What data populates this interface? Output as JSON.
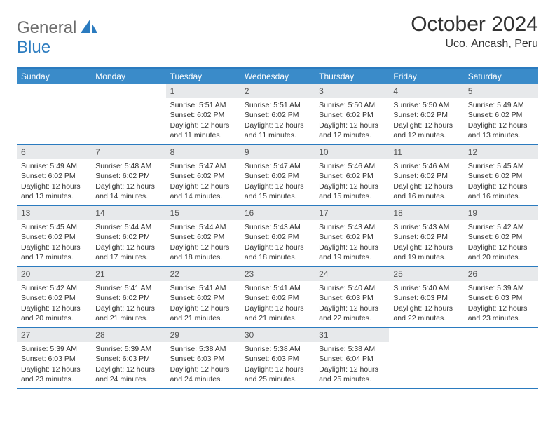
{
  "logo": {
    "text1": "General",
    "text2": "Blue"
  },
  "title": "October 2024",
  "location": "Uco, Ancash, Peru",
  "colors": {
    "header_bg": "#3a8bc9",
    "border": "#2b7bbf",
    "daynum_bg": "#e7e9eb",
    "logo_gray": "#6b6b6b",
    "logo_blue": "#2b7bbf"
  },
  "day_names": [
    "Sunday",
    "Monday",
    "Tuesday",
    "Wednesday",
    "Thursday",
    "Friday",
    "Saturday"
  ],
  "weeks": [
    [
      null,
      null,
      {
        "n": "1",
        "sr": "5:51 AM",
        "ss": "6:02 PM",
        "dl": "12 hours and 11 minutes."
      },
      {
        "n": "2",
        "sr": "5:51 AM",
        "ss": "6:02 PM",
        "dl": "12 hours and 11 minutes."
      },
      {
        "n": "3",
        "sr": "5:50 AM",
        "ss": "6:02 PM",
        "dl": "12 hours and 12 minutes."
      },
      {
        "n": "4",
        "sr": "5:50 AM",
        "ss": "6:02 PM",
        "dl": "12 hours and 12 minutes."
      },
      {
        "n": "5",
        "sr": "5:49 AM",
        "ss": "6:02 PM",
        "dl": "12 hours and 13 minutes."
      }
    ],
    [
      {
        "n": "6",
        "sr": "5:49 AM",
        "ss": "6:02 PM",
        "dl": "12 hours and 13 minutes."
      },
      {
        "n": "7",
        "sr": "5:48 AM",
        "ss": "6:02 PM",
        "dl": "12 hours and 14 minutes."
      },
      {
        "n": "8",
        "sr": "5:47 AM",
        "ss": "6:02 PM",
        "dl": "12 hours and 14 minutes."
      },
      {
        "n": "9",
        "sr": "5:47 AM",
        "ss": "6:02 PM",
        "dl": "12 hours and 15 minutes."
      },
      {
        "n": "10",
        "sr": "5:46 AM",
        "ss": "6:02 PM",
        "dl": "12 hours and 15 minutes."
      },
      {
        "n": "11",
        "sr": "5:46 AM",
        "ss": "6:02 PM",
        "dl": "12 hours and 16 minutes."
      },
      {
        "n": "12",
        "sr": "5:45 AM",
        "ss": "6:02 PM",
        "dl": "12 hours and 16 minutes."
      }
    ],
    [
      {
        "n": "13",
        "sr": "5:45 AM",
        "ss": "6:02 PM",
        "dl": "12 hours and 17 minutes."
      },
      {
        "n": "14",
        "sr": "5:44 AM",
        "ss": "6:02 PM",
        "dl": "12 hours and 17 minutes."
      },
      {
        "n": "15",
        "sr": "5:44 AM",
        "ss": "6:02 PM",
        "dl": "12 hours and 18 minutes."
      },
      {
        "n": "16",
        "sr": "5:43 AM",
        "ss": "6:02 PM",
        "dl": "12 hours and 18 minutes."
      },
      {
        "n": "17",
        "sr": "5:43 AM",
        "ss": "6:02 PM",
        "dl": "12 hours and 19 minutes."
      },
      {
        "n": "18",
        "sr": "5:43 AM",
        "ss": "6:02 PM",
        "dl": "12 hours and 19 minutes."
      },
      {
        "n": "19",
        "sr": "5:42 AM",
        "ss": "6:02 PM",
        "dl": "12 hours and 20 minutes."
      }
    ],
    [
      {
        "n": "20",
        "sr": "5:42 AM",
        "ss": "6:02 PM",
        "dl": "12 hours and 20 minutes."
      },
      {
        "n": "21",
        "sr": "5:41 AM",
        "ss": "6:02 PM",
        "dl": "12 hours and 21 minutes."
      },
      {
        "n": "22",
        "sr": "5:41 AM",
        "ss": "6:02 PM",
        "dl": "12 hours and 21 minutes."
      },
      {
        "n": "23",
        "sr": "5:41 AM",
        "ss": "6:02 PM",
        "dl": "12 hours and 21 minutes."
      },
      {
        "n": "24",
        "sr": "5:40 AM",
        "ss": "6:03 PM",
        "dl": "12 hours and 22 minutes."
      },
      {
        "n": "25",
        "sr": "5:40 AM",
        "ss": "6:03 PM",
        "dl": "12 hours and 22 minutes."
      },
      {
        "n": "26",
        "sr": "5:39 AM",
        "ss": "6:03 PM",
        "dl": "12 hours and 23 minutes."
      }
    ],
    [
      {
        "n": "27",
        "sr": "5:39 AM",
        "ss": "6:03 PM",
        "dl": "12 hours and 23 minutes."
      },
      {
        "n": "28",
        "sr": "5:39 AM",
        "ss": "6:03 PM",
        "dl": "12 hours and 24 minutes."
      },
      {
        "n": "29",
        "sr": "5:38 AM",
        "ss": "6:03 PM",
        "dl": "12 hours and 24 minutes."
      },
      {
        "n": "30",
        "sr": "5:38 AM",
        "ss": "6:03 PM",
        "dl": "12 hours and 25 minutes."
      },
      {
        "n": "31",
        "sr": "5:38 AM",
        "ss": "6:04 PM",
        "dl": "12 hours and 25 minutes."
      },
      null,
      null
    ]
  ],
  "labels": {
    "sunrise": "Sunrise: ",
    "sunset": "Sunset: ",
    "daylight": "Daylight: "
  }
}
